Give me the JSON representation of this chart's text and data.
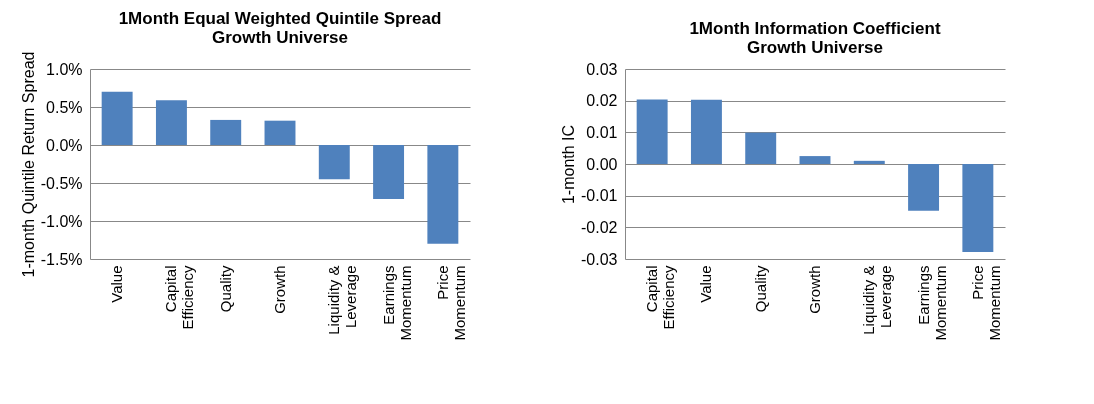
{
  "chart_data": [
    {
      "type": "bar",
      "title": [
        "1Month Equal Weighted Quintile Spread",
        "Growth Universe"
      ],
      "ylabel": "1-month Quintile Return Spread",
      "categories": [
        "Value",
        "Capital Efficiency",
        "Quality",
        "Growth",
        "Liquidity & Leverage",
        "Earnings Momentum",
        "Price Momentum"
      ],
      "values": [
        0.7,
        0.59,
        0.33,
        0.32,
        -0.45,
        -0.71,
        -1.3
      ],
      "color": "#4f81bd",
      "ylim": [
        -1.5,
        1.0
      ],
      "yticks": [
        {
          "value": -1.5,
          "label": "-1.5%"
        },
        {
          "value": -1.0,
          "label": "-1.0%"
        },
        {
          "value": -0.5,
          "label": "-0.5%"
        },
        {
          "value": 0,
          "label": "0.0%"
        },
        {
          "value": 0.5,
          "label": "0.5%"
        },
        {
          "value": 1.0,
          "label": "1.0%"
        }
      ],
      "grid": "y"
    },
    {
      "type": "bar",
      "title": [
        "1Month Information Coefficient",
        "Growth Universe"
      ],
      "ylabel": "1-month IC",
      "categories": [
        "Capital Efficiency",
        "Value",
        "Quality",
        "Growth",
        "Liquidity & Leverage",
        "Earnings Momentum",
        "Price Momentum"
      ],
      "values": [
        0.0204,
        0.0203,
        0.0099,
        0.0025,
        0.001,
        -0.0148,
        -0.0278
      ],
      "color": "#4f81bd",
      "ylim": [
        -0.03,
        0.03
      ],
      "yticks": [
        {
          "value": -0.03,
          "label": "-0.03"
        },
        {
          "value": -0.02,
          "label": "-0.02"
        },
        {
          "value": -0.01,
          "label": "-0.01"
        },
        {
          "value": 0,
          "label": "0.00"
        },
        {
          "value": 0.01,
          "label": "0.01"
        },
        {
          "value": 0.02,
          "label": "0.02"
        },
        {
          "value": 0.03,
          "label": "0.03"
        }
      ],
      "grid": "y"
    }
  ]
}
